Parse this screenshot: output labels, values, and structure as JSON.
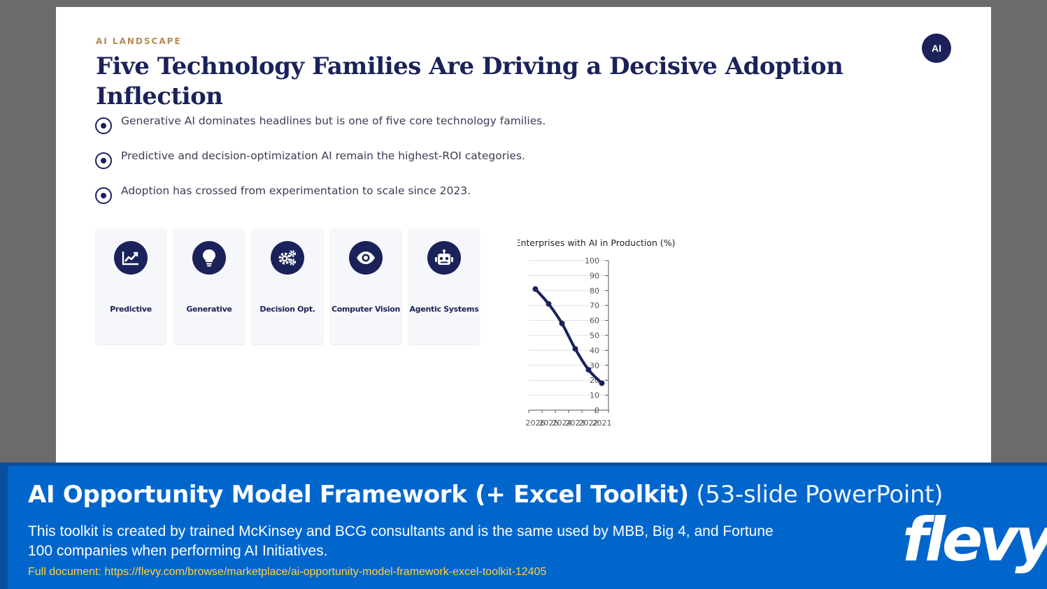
{
  "slide": {
    "eyebrow": "AI LANDSCAPE",
    "title": "Five Technology Families Are Driving a Decisive Adoption Inflection",
    "badge": "AI",
    "bullets": [
      "Generative AI dominates headlines but is one of five core technology families.",
      "Predictive and decision-optimization AI remain the highest-ROI categories.",
      "Adoption has crossed from experimentation to scale since 2023."
    ],
    "cards": [
      {
        "label": "Predictive",
        "icon": "chart-line-icon"
      },
      {
        "label": "Generative",
        "icon": "lightbulb-icon"
      },
      {
        "label": "Decision Opt.",
        "icon": "gears-icon"
      },
      {
        "label": "Computer Vision",
        "icon": "eye-icon"
      },
      {
        "label": "Agentic Systems",
        "icon": "robot-icon"
      }
    ]
  },
  "chart_data": {
    "type": "line",
    "title": "Share of Enterprises with AI in Production (%)",
    "x": [
      "2021",
      "2022",
      "2023",
      "2024",
      "2025",
      "2026"
    ],
    "series": [
      {
        "values": [
          18,
          27,
          41,
          58,
          71,
          81
        ]
      }
    ],
    "ylim": [
      0,
      100
    ],
    "yticks": [
      0,
      10,
      20,
      30,
      40,
      50,
      60,
      70,
      80,
      90,
      100
    ],
    "grid": true,
    "color": "#1b2259"
  },
  "banner": {
    "title_strong": "AI Opportunity Model Framework (+ Excel Toolkit)",
    "title_light": "(53-slide PowerPoint)",
    "description": "This toolkit is created by trained McKinsey and BCG consultants and is the same used by MBB, Big 4, and Fortune 100 companies when performing AI Initiatives.",
    "link": "Full document: https://flevy.com/browse/marketplace/ai-opportunity-model-framework-excel-toolkit-12405",
    "brand": "flevy"
  }
}
